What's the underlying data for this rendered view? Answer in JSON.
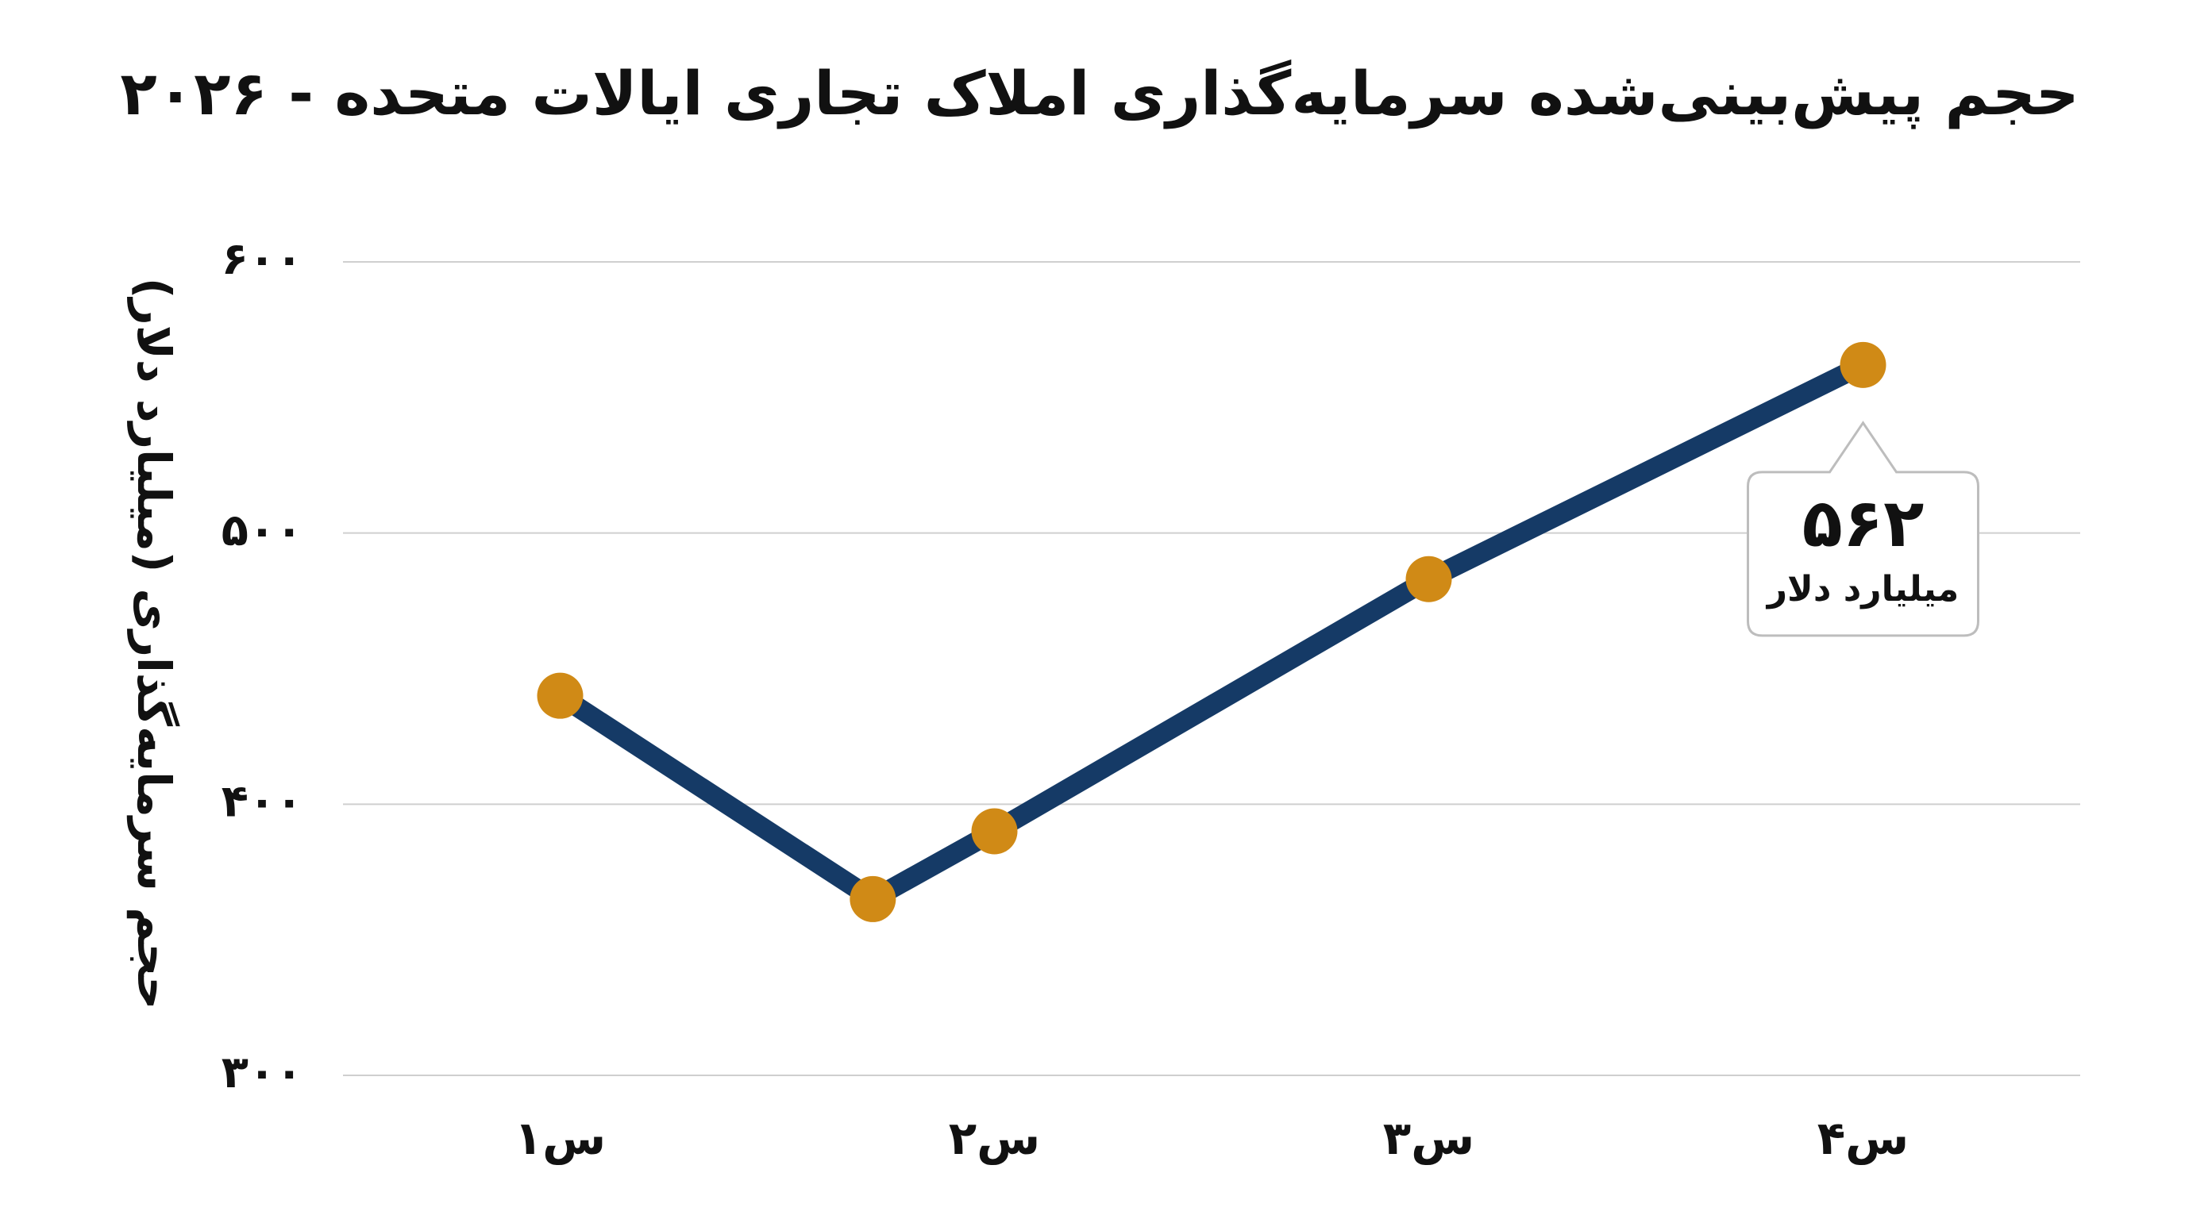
{
  "chart_data": {
    "type": "line",
    "title": "حجم پیش‌بینی‌شده سرمایه‌گذاری املاک تجاری ایالات متحده - ۲۰۲۶",
    "y_label": "حجم سرمایه‌گذاری (میلیارد دلار)",
    "x": [
      1,
      1.72,
      2,
      3,
      4
    ],
    "xlim": [
      0.5,
      4.5
    ],
    "xticks": [
      {
        "value": 1,
        "label": "س۱"
      },
      {
        "value": 2,
        "label": "س۲"
      },
      {
        "value": 3,
        "label": "س۳"
      },
      {
        "value": 4,
        "label": "س۴"
      }
    ],
    "ylim": [
      300,
      600
    ],
    "yticks": [
      {
        "value": 300,
        "label": "۳۰۰"
      },
      {
        "value": 400,
        "label": "۴۰۰"
      },
      {
        "value": 500,
        "label": "۵۰۰"
      },
      {
        "value": 600,
        "label": "۶۰۰"
      }
    ],
    "grid": true,
    "series": [
      {
        "color": "#153a66",
        "marker_color": "#d08a16",
        "values": [
          440,
          365,
          390,
          483,
          562
        ],
        "value_labels": [
          null,
          null,
          null,
          null,
          "۵۶۲"
        ]
      }
    ],
    "annotation": "میلیارد دلار"
  }
}
